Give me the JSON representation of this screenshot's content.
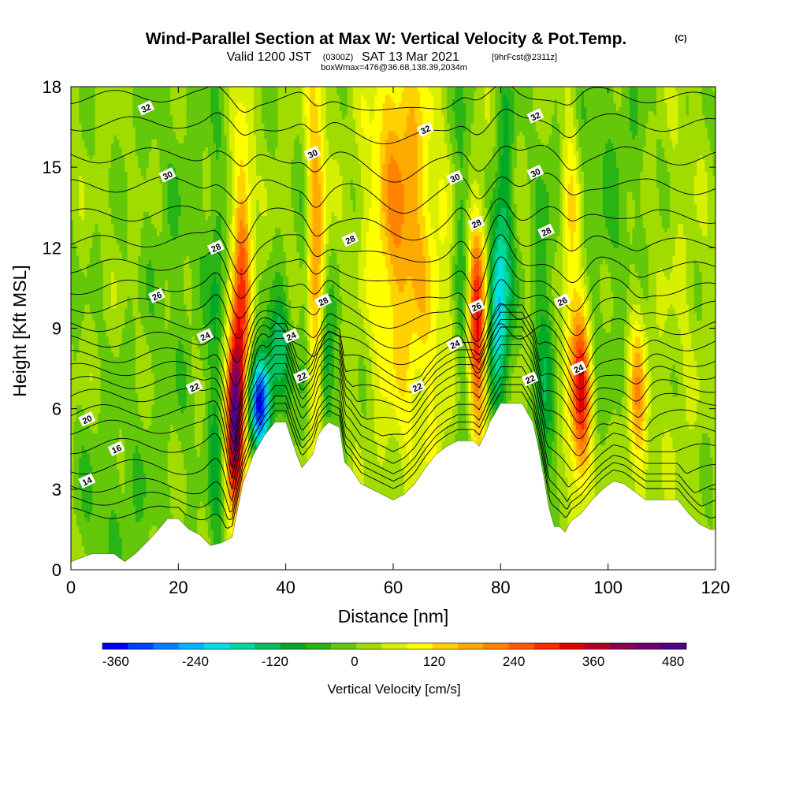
{
  "chart_data": {
    "type": "heatmap",
    "title": {
      "main": "Wind-Parallel Section at Max W: Vertical Velocity & Pot.Temp.",
      "copyright": "(C)",
      "valid_prefix": "Valid 1200 JST",
      "valid_utc": "(0300Z)",
      "valid_date": "SAT 13 Mar 2021",
      "forecast": "[9hrFcst@2311z]",
      "box_info": "boxWmax=476@36.68,138.39,2034m"
    },
    "xlabel": "Distance [nm]",
    "ylabel": "Height [Kft MSL]",
    "xlim": [
      0,
      120
    ],
    "ylim": [
      0,
      18
    ],
    "x_ticks": [
      "0",
      "20",
      "40",
      "60",
      "80",
      "100",
      "120"
    ],
    "y_ticks": [
      "0",
      "3",
      "6",
      "9",
      "12",
      "15",
      "18"
    ],
    "colorbar": {
      "title": "Vertical Velocity [cm/s]",
      "range": [
        -380,
        500
      ],
      "ticks": [
        "-360",
        "-240",
        "-120",
        "0",
        "120",
        "240",
        "360",
        "480"
      ],
      "colors": [
        "#0000ff",
        "#0040ff",
        "#0080ff",
        "#00b4ff",
        "#00e0e0",
        "#00d8a0",
        "#00c060",
        "#00a828",
        "#28b414",
        "#64c80a",
        "#a0dc00",
        "#d8f000",
        "#ffff00",
        "#ffd200",
        "#ffaa00",
        "#ff8200",
        "#ff5a00",
        "#ff2800",
        "#e00000",
        "#b40028",
        "#8c0050",
        "#6e006e",
        "#500082"
      ]
    },
    "terrain": [
      [
        0,
        0.3
      ],
      [
        4,
        0.6
      ],
      [
        8,
        0.6
      ],
      [
        10,
        0.3
      ],
      [
        12,
        0.6
      ],
      [
        15,
        1.2
      ],
      [
        18,
        1.9
      ],
      [
        20,
        1.9
      ],
      [
        22,
        1.5
      ],
      [
        24,
        1.3
      ],
      [
        26,
        0.9
      ],
      [
        28,
        1.0
      ],
      [
        30,
        1.2
      ],
      [
        32,
        3.2
      ],
      [
        34,
        4.3
      ],
      [
        36,
        5.0
      ],
      [
        38,
        5.5
      ],
      [
        40,
        5.5
      ],
      [
        42,
        4.3
      ],
      [
        43,
        3.8
      ],
      [
        45,
        4.3
      ],
      [
        46,
        5.0
      ],
      [
        47,
        5.3
      ],
      [
        48,
        5.5
      ],
      [
        50,
        5.3
      ],
      [
        51,
        4.0
      ],
      [
        52,
        3.8
      ],
      [
        54,
        3.2
      ],
      [
        56,
        3.0
      ],
      [
        58,
        2.8
      ],
      [
        60,
        2.6
      ],
      [
        62,
        2.8
      ],
      [
        64,
        3.2
      ],
      [
        66,
        3.8
      ],
      [
        68,
        4.3
      ],
      [
        70,
        4.6
      ],
      [
        72,
        4.8
      ],
      [
        75,
        4.8
      ],
      [
        76,
        4.6
      ],
      [
        77,
        5.0
      ],
      [
        78,
        5.5
      ],
      [
        80,
        6.2
      ],
      [
        84,
        6.2
      ],
      [
        86,
        5.5
      ],
      [
        87,
        4.6
      ],
      [
        88,
        3.5
      ],
      [
        89,
        2.3
      ],
      [
        90,
        1.6
      ],
      [
        91,
        1.6
      ],
      [
        92,
        1.4
      ],
      [
        93,
        1.8
      ],
      [
        95,
        2.1
      ],
      [
        97,
        2.6
      ],
      [
        99,
        3.0
      ],
      [
        101,
        3.3
      ],
      [
        103,
        3.2
      ],
      [
        105,
        2.9
      ],
      [
        107,
        2.6
      ],
      [
        109,
        2.6
      ],
      [
        111,
        2.6
      ],
      [
        113,
        2.6
      ],
      [
        115,
        2.1
      ],
      [
        117,
        1.7
      ],
      [
        119,
        1.5
      ],
      [
        120,
        1.5
      ]
    ],
    "velocity_features": [
      {
        "x": 30.5,
        "y": 5.8,
        "sx": 1.1,
        "sy": 2.3,
        "w": 470
      },
      {
        "x": 35,
        "y": 6.2,
        "sx": 1.4,
        "sy": 1.2,
        "w": -370
      },
      {
        "x": 38.5,
        "y": 8.0,
        "sx": 1.6,
        "sy": 1.5,
        "w": -160
      },
      {
        "x": 32,
        "y": 11.0,
        "sx": 1.3,
        "sy": 4.0,
        "w": 220
      },
      {
        "x": 27,
        "y": 7.0,
        "sx": 1.0,
        "sy": 6.0,
        "w": -90
      },
      {
        "x": 45.5,
        "y": 11.5,
        "sx": 1.5,
        "sy": 7.0,
        "w": 170
      },
      {
        "x": 47.5,
        "y": 7.5,
        "sx": 1.1,
        "sy": 2.0,
        "w": -170
      },
      {
        "x": 43.5,
        "y": 8.0,
        "sx": 1.0,
        "sy": 6.0,
        "w": -80
      },
      {
        "x": 61,
        "y": 14.5,
        "sx": 4.0,
        "sy": 4.5,
        "w": 160
      },
      {
        "x": 66,
        "y": 8.5,
        "sx": 6.0,
        "sy": 5.0,
        "w": 70
      },
      {
        "x": 75.5,
        "y": 9.0,
        "sx": 1.3,
        "sy": 3.0,
        "w": 290
      },
      {
        "x": 73,
        "y": 9.5,
        "sx": 1.3,
        "sy": 7.0,
        "w": -110
      },
      {
        "x": 79.5,
        "y": 9.8,
        "sx": 1.3,
        "sy": 2.5,
        "w": -230
      },
      {
        "x": 81,
        "y": 14.0,
        "sx": 1.2,
        "sy": 5.0,
        "w": -80
      },
      {
        "x": 95.0,
        "y": 6.5,
        "sx": 1.3,
        "sy": 2.5,
        "w": 290
      },
      {
        "x": 93,
        "y": 12.0,
        "sx": 1.2,
        "sy": 4.5,
        "w": 120
      },
      {
        "x": 88,
        "y": 7.0,
        "sx": 1.5,
        "sy": 5.0,
        "w": -90
      },
      {
        "x": 105.5,
        "y": 6.5,
        "sx": 1.3,
        "sy": 2.5,
        "w": 160
      },
      {
        "x": 8,
        "y": 2.5,
        "sx": 6.0,
        "sy": 2.5,
        "w": -40
      },
      {
        "x": 20,
        "y": 12.0,
        "sx": 5.0,
        "sy": 6.0,
        "w": -30
      },
      {
        "x": 100,
        "y": 14.0,
        "sx": 6.0,
        "sy": 5.0,
        "w": -40
      },
      {
        "x": 113,
        "y": 10.0,
        "sx": 4.0,
        "sy": 6.0,
        "w": 30
      }
    ],
    "theta_contours": {
      "levels": [
        {
          "theta": 12,
          "base": 2.0
        },
        {
          "theta": 13,
          "base": 2.5
        },
        {
          "theta": 14,
          "base": 3.0
        },
        {
          "theta": 15,
          "base": 3.7
        },
        {
          "theta": 16,
          "base": 4.5
        },
        {
          "theta": 17,
          "base": 5.2
        },
        {
          "theta": 18,
          "base": 5.8
        },
        {
          "theta": 19,
          "base": 6.4
        },
        {
          "theta": 20,
          "base": 6.9
        },
        {
          "theta": 21,
          "base": 7.4
        },
        {
          "theta": 22,
          "base": 7.9
        },
        {
          "theta": 23,
          "base": 8.5
        },
        {
          "theta": 24,
          "base": 9.1
        },
        {
          "theta": 25,
          "base": 9.8
        },
        {
          "theta": 26,
          "base": 10.5
        },
        {
          "theta": 27,
          "base": 11.3
        },
        {
          "theta": 28,
          "base": 12.2
        },
        {
          "theta": 29,
          "base": 13.2
        },
        {
          "theta": 30,
          "base": 14.3
        },
        {
          "theta": 31,
          "base": 15.4
        },
        {
          "theta": 32,
          "base": 16.6
        },
        {
          "theta": 33,
          "base": 17.6
        }
      ],
      "labels": [
        {
          "text": "32",
          "x": 14,
          "y": 17.2
        },
        {
          "text": "30",
          "x": 18,
          "y": 14.7
        },
        {
          "text": "28",
          "x": 27,
          "y": 12.0
        },
        {
          "text": "26",
          "x": 16,
          "y": 10.2
        },
        {
          "text": "24",
          "x": 25,
          "y": 8.7
        },
        {
          "text": "22",
          "x": 23,
          "y": 6.8
        },
        {
          "text": "20",
          "x": 3,
          "y": 5.6
        },
        {
          "text": "16",
          "x": 8.5,
          "y": 4.5
        },
        {
          "text": "14",
          "x": 3,
          "y": 3.3
        },
        {
          "text": "30",
          "x": 45,
          "y": 15.5
        },
        {
          "text": "28",
          "x": 52,
          "y": 12.3
        },
        {
          "text": "28",
          "x": 47,
          "y": 10.0
        },
        {
          "text": "24",
          "x": 41,
          "y": 8.7
        },
        {
          "text": "22",
          "x": 43,
          "y": 7.2
        },
        {
          "text": "32",
          "x": 66,
          "y": 16.4
        },
        {
          "text": "22",
          "x": 64.5,
          "y": 6.8
        },
        {
          "text": "30",
          "x": 71.5,
          "y": 14.6
        },
        {
          "text": "28",
          "x": 75.5,
          "y": 12.9
        },
        {
          "text": "26",
          "x": 75.5,
          "y": 9.8
        },
        {
          "text": "24",
          "x": 71.5,
          "y": 8.4
        },
        {
          "text": "32",
          "x": 86.5,
          "y": 16.9
        },
        {
          "text": "30",
          "x": 86.5,
          "y": 14.8
        },
        {
          "text": "28",
          "x": 88.5,
          "y": 12.6
        },
        {
          "text": "26",
          "x": 91.5,
          "y": 10.0
        },
        {
          "text": "22",
          "x": 85.5,
          "y": 7.1
        },
        {
          "text": "24",
          "x": 94.5,
          "y": 7.5
        }
      ]
    }
  }
}
